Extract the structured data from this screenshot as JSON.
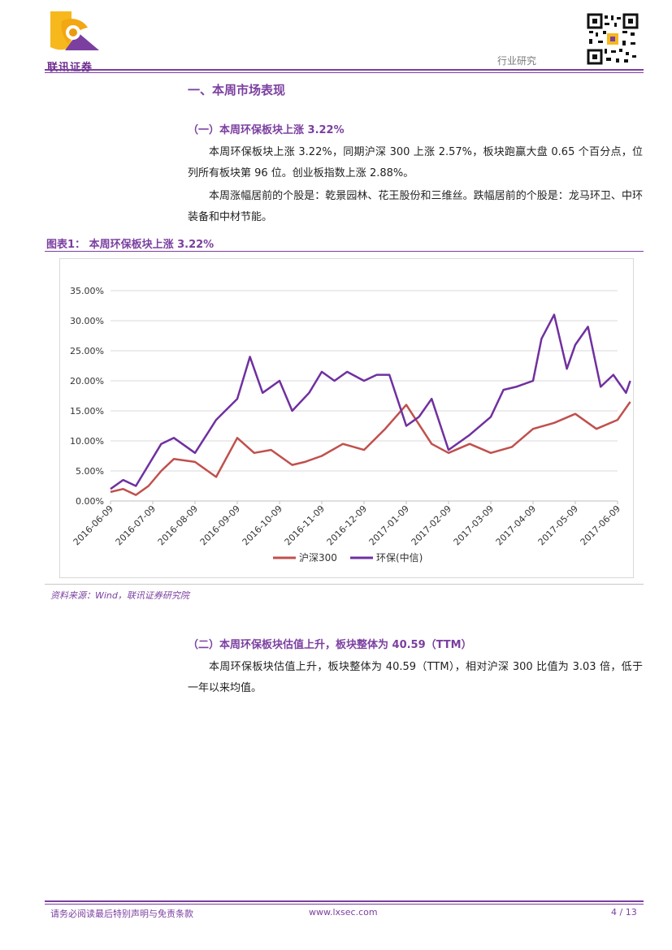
{
  "header": {
    "logo_text": "联讯证券",
    "category": "行业研究"
  },
  "section": {
    "heading": "一、本周市场表现",
    "sub1": {
      "heading": "（一）本周环保板块上涨 3.22%",
      "para1": "本周环保板块上涨 3.22%，同期沪深 300 上涨 2.57%，板块跑赢大盘 0.65 个百分点，位列所有板块第 96 位。创业板指数上涨 2.88%。",
      "para2": "本周涨幅居前的个股是：乾景园林、花王股份和三维丝。跌幅居前的个股是：龙马环卫、中环装备和中材节能。"
    },
    "sub2": {
      "heading": "（二）本周环保板块估值上升，板块整体为 40.59（TTM）",
      "para1": "本周环保板块估值上升，板块整体为 40.59（TTM），相对沪深 300 比值为 3.03 倍，低于一年以来均值。"
    }
  },
  "figure": {
    "title": "图表1：  本周环保板块上涨 3.22%",
    "source": "资料来源：Wind，联讯证券研究院"
  },
  "chart_data": {
    "type": "line",
    "x_ticks": [
      "2016-06-09",
      "2016-07-09",
      "2016-08-09",
      "2016-09-09",
      "2016-10-09",
      "2016-11-09",
      "2016-12-09",
      "2017-01-09",
      "2017-02-09",
      "2017-03-09",
      "2017-04-09",
      "2017-05-09",
      "2017-06-09"
    ],
    "y_ticks": [
      "0.00%",
      "5.00%",
      "10.00%",
      "15.00%",
      "20.00%",
      "25.00%",
      "30.00%",
      "35.00%"
    ],
    "ylim": [
      0,
      35
    ],
    "grid": true,
    "legend_position": "bottom",
    "series": [
      {
        "name": "沪深300",
        "color": "#c0504d",
        "x": [
          0,
          0.3,
          0.6,
          0.9,
          1.2,
          1.5,
          2,
          2.5,
          3,
          3.4,
          3.8,
          4.3,
          4.6,
          5,
          5.5,
          6,
          6.5,
          7,
          7.6,
          8,
          8.5,
          9,
          9.5,
          10,
          10.5,
          11,
          11.5,
          12,
          12.3
        ],
        "values": [
          1.5,
          2,
          1,
          2.5,
          5,
          7,
          6.5,
          4,
          10.5,
          8,
          8.5,
          6,
          6.5,
          7.5,
          9.5,
          8.5,
          12,
          16,
          9.5,
          8,
          9.5,
          8,
          9,
          12,
          13,
          14.5,
          12,
          13.5,
          16.5
        ]
      },
      {
        "name": "环保(中信)",
        "color": "#7030a0",
        "x": [
          0,
          0.3,
          0.6,
          0.9,
          1.2,
          1.5,
          2,
          2.5,
          3,
          3.3,
          3.6,
          4,
          4.3,
          4.7,
          5,
          5.3,
          5.6,
          6,
          6.3,
          6.6,
          7,
          7.3,
          7.6,
          8,
          8.5,
          9,
          9.3,
          9.6,
          10,
          10.2,
          10.5,
          10.8,
          11,
          11.3,
          11.6,
          11.9,
          12.2,
          12.3
        ],
        "values": [
          2,
          3.5,
          2.5,
          6,
          9.5,
          10.5,
          8,
          13.5,
          17,
          24,
          18,
          20,
          15,
          18,
          21.5,
          20,
          21.5,
          20,
          21,
          21,
          12.5,
          14,
          17,
          8.5,
          11,
          14,
          18.5,
          19,
          20,
          27,
          31,
          22,
          26,
          29,
          19,
          21,
          18,
          20
        ]
      }
    ]
  },
  "footer": {
    "disclaimer": "请务必阅读最后特别声明与免责条款",
    "url": "www.lxsec.com",
    "page": "4 / 13"
  }
}
